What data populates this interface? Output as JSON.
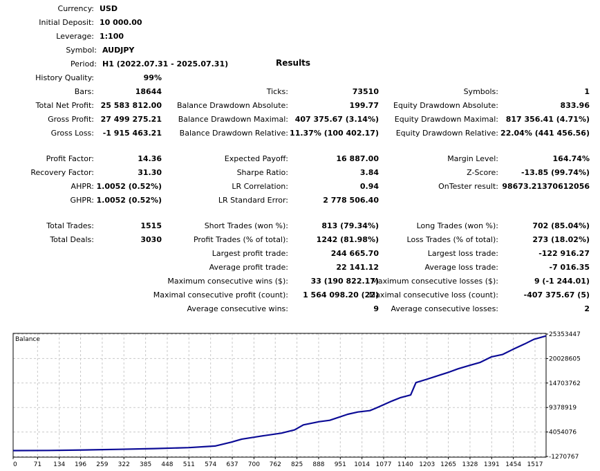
{
  "header": {
    "currency": {
      "label": "Currency:",
      "value": "USD"
    },
    "initial_deposit": {
      "label": "Initial Deposit:",
      "value": "10 000.00"
    },
    "leverage": {
      "label": "Leverage:",
      "value": "1:100"
    },
    "symbol": {
      "label": "Symbol:",
      "value": "AUDJPY"
    },
    "period": {
      "label": "Period:",
      "value": "H1 (2022.07.31 - 2025.07.31)"
    },
    "results_title": "Results",
    "history_quality": {
      "label": "History Quality:",
      "value": "99%"
    }
  },
  "col1": {
    "bars": {
      "label": "Bars:",
      "value": "18644"
    },
    "total_net_profit": {
      "label": "Total Net Profit:",
      "value": "25 583 812.00"
    },
    "gross_profit": {
      "label": "Gross Profit:",
      "value": "27 499 275.21"
    },
    "gross_loss": {
      "label": "Gross Loss:",
      "value": "-1 915 463.21"
    },
    "profit_factor": {
      "label": "Profit Factor:",
      "value": "14.36"
    },
    "recovery_factor": {
      "label": "Recovery Factor:",
      "value": "31.30"
    },
    "ahpr": {
      "label": "AHPR:",
      "value": "1.0052 (0.52%)"
    },
    "ghpr": {
      "label": "GHPR:",
      "value": "1.0052 (0.52%)"
    },
    "total_trades": {
      "label": "Total Trades:",
      "value": "1515"
    },
    "total_deals": {
      "label": "Total Deals:",
      "value": "3030"
    }
  },
  "col2": {
    "ticks": {
      "label": "Ticks:",
      "value": "73510"
    },
    "bal_dd_abs": {
      "label": "Balance Drawdown Absolute:",
      "value": "199.77"
    },
    "bal_dd_max": {
      "label": "Balance Drawdown Maximal:",
      "value": "407 375.67 (3.14%)"
    },
    "bal_dd_rel": {
      "label": "Balance Drawdown Relative:",
      "value": "11.37% (100 402.17)"
    },
    "expected_payoff": {
      "label": "Expected Payoff:",
      "value": "16 887.00"
    },
    "sharpe_ratio": {
      "label": "Sharpe Ratio:",
      "value": "3.84"
    },
    "lr_correlation": {
      "label": "LR Correlation:",
      "value": "0.94"
    },
    "lr_std_error": {
      "label": "LR Standard Error:",
      "value": "2 778 506.40"
    },
    "short_trades": {
      "label": "Short Trades (won %):",
      "value": "813 (79.34%)"
    },
    "profit_trades": {
      "label": "Profit Trades (% of total):",
      "value": "1242 (81.98%)"
    },
    "largest_profit": {
      "label": "Largest profit trade:",
      "value": "244 665.70"
    },
    "average_profit": {
      "label": "Average profit trade:",
      "value": "22 141.12"
    },
    "max_consec_wins": {
      "label": "Maximum consecutive wins ($):",
      "value": "33 (190 822.17)"
    },
    "maximal_consec_profit": {
      "label": "Maximal consecutive profit (count):",
      "value": "1 564 098.20 (22)"
    },
    "avg_consec_wins": {
      "label": "Average consecutive wins:",
      "value": "9"
    }
  },
  "col3": {
    "symbols": {
      "label": "Symbols:",
      "value": "1"
    },
    "eq_dd_abs": {
      "label": "Equity Drawdown Absolute:",
      "value": "833.96"
    },
    "eq_dd_max": {
      "label": "Equity Drawdown Maximal:",
      "value": "817 356.41 (4.71%)"
    },
    "eq_dd_rel": {
      "label": "Equity Drawdown Relative:",
      "value": "22.04% (441 456.56)"
    },
    "margin_level": {
      "label": "Margin Level:",
      "value": "164.74%"
    },
    "z_score": {
      "label": "Z-Score:",
      "value": "-13.85 (99.74%)"
    },
    "ontester": {
      "label": "OnTester result:",
      "value": "98673.21370612056"
    },
    "long_trades": {
      "label": "Long Trades (won %):",
      "value": "702 (85.04%)"
    },
    "loss_trades": {
      "label": "Loss Trades (% of total):",
      "value": "273 (18.02%)"
    },
    "largest_loss": {
      "label": "Largest loss trade:",
      "value": "-122 916.27"
    },
    "average_loss": {
      "label": "Average loss trade:",
      "value": "-7 016.35"
    },
    "max_consec_losses": {
      "label": "Maximum consecutive losses ($):",
      "value": "9 (-1 244.01)"
    },
    "maximal_consec_loss": {
      "label": "Maximal consecutive loss (count):",
      "value": "-407 375.67 (5)"
    },
    "avg_consec_losses": {
      "label": "Average consecutive losses:",
      "value": "2"
    }
  },
  "chart_data": {
    "type": "line",
    "title": "Balance",
    "line_color": "#0b0b96",
    "x_ticks": [
      "0",
      "71",
      "134",
      "196",
      "259",
      "322",
      "385",
      "448",
      "511",
      "574",
      "637",
      "700",
      "762",
      "825",
      "888",
      "951",
      "1014",
      "1077",
      "1140",
      "1203",
      "1265",
      "1328",
      "1391",
      "1454",
      "1517"
    ],
    "y_ticks": [
      "25353447",
      "20028605",
      "14703762",
      "9378919",
      "4054076",
      "-1270767"
    ],
    "xlim": [
      0,
      1515
    ],
    "ylim": [
      -1270767,
      25353447
    ],
    "grid": true,
    "series": [
      {
        "x": [
          0,
          100,
          200,
          300,
          400,
          500,
          574,
          620,
          650,
          700,
          762,
          800,
          825,
          870,
          900,
          951,
          980,
          1014,
          1030,
          1077,
          1100,
          1130,
          1145,
          1175,
          1203,
          1240,
          1265,
          1300,
          1328,
          1360,
          1391,
          1420,
          1454,
          1480,
          1515
        ],
        "y": [
          10000,
          40000,
          140000,
          280000,
          450000,
          650000,
          1000000,
          1850000,
          2500000,
          3100000,
          3800000,
          4500000,
          5600000,
          6300000,
          6600000,
          7900000,
          8400000,
          8700000,
          9200000,
          10800000,
          11500000,
          12100000,
          14800000,
          15500000,
          16200000,
          17100000,
          17800000,
          18600000,
          19200000,
          20400000,
          20900000,
          22000000,
          23200000,
          24200000,
          24950000
        ]
      }
    ]
  }
}
